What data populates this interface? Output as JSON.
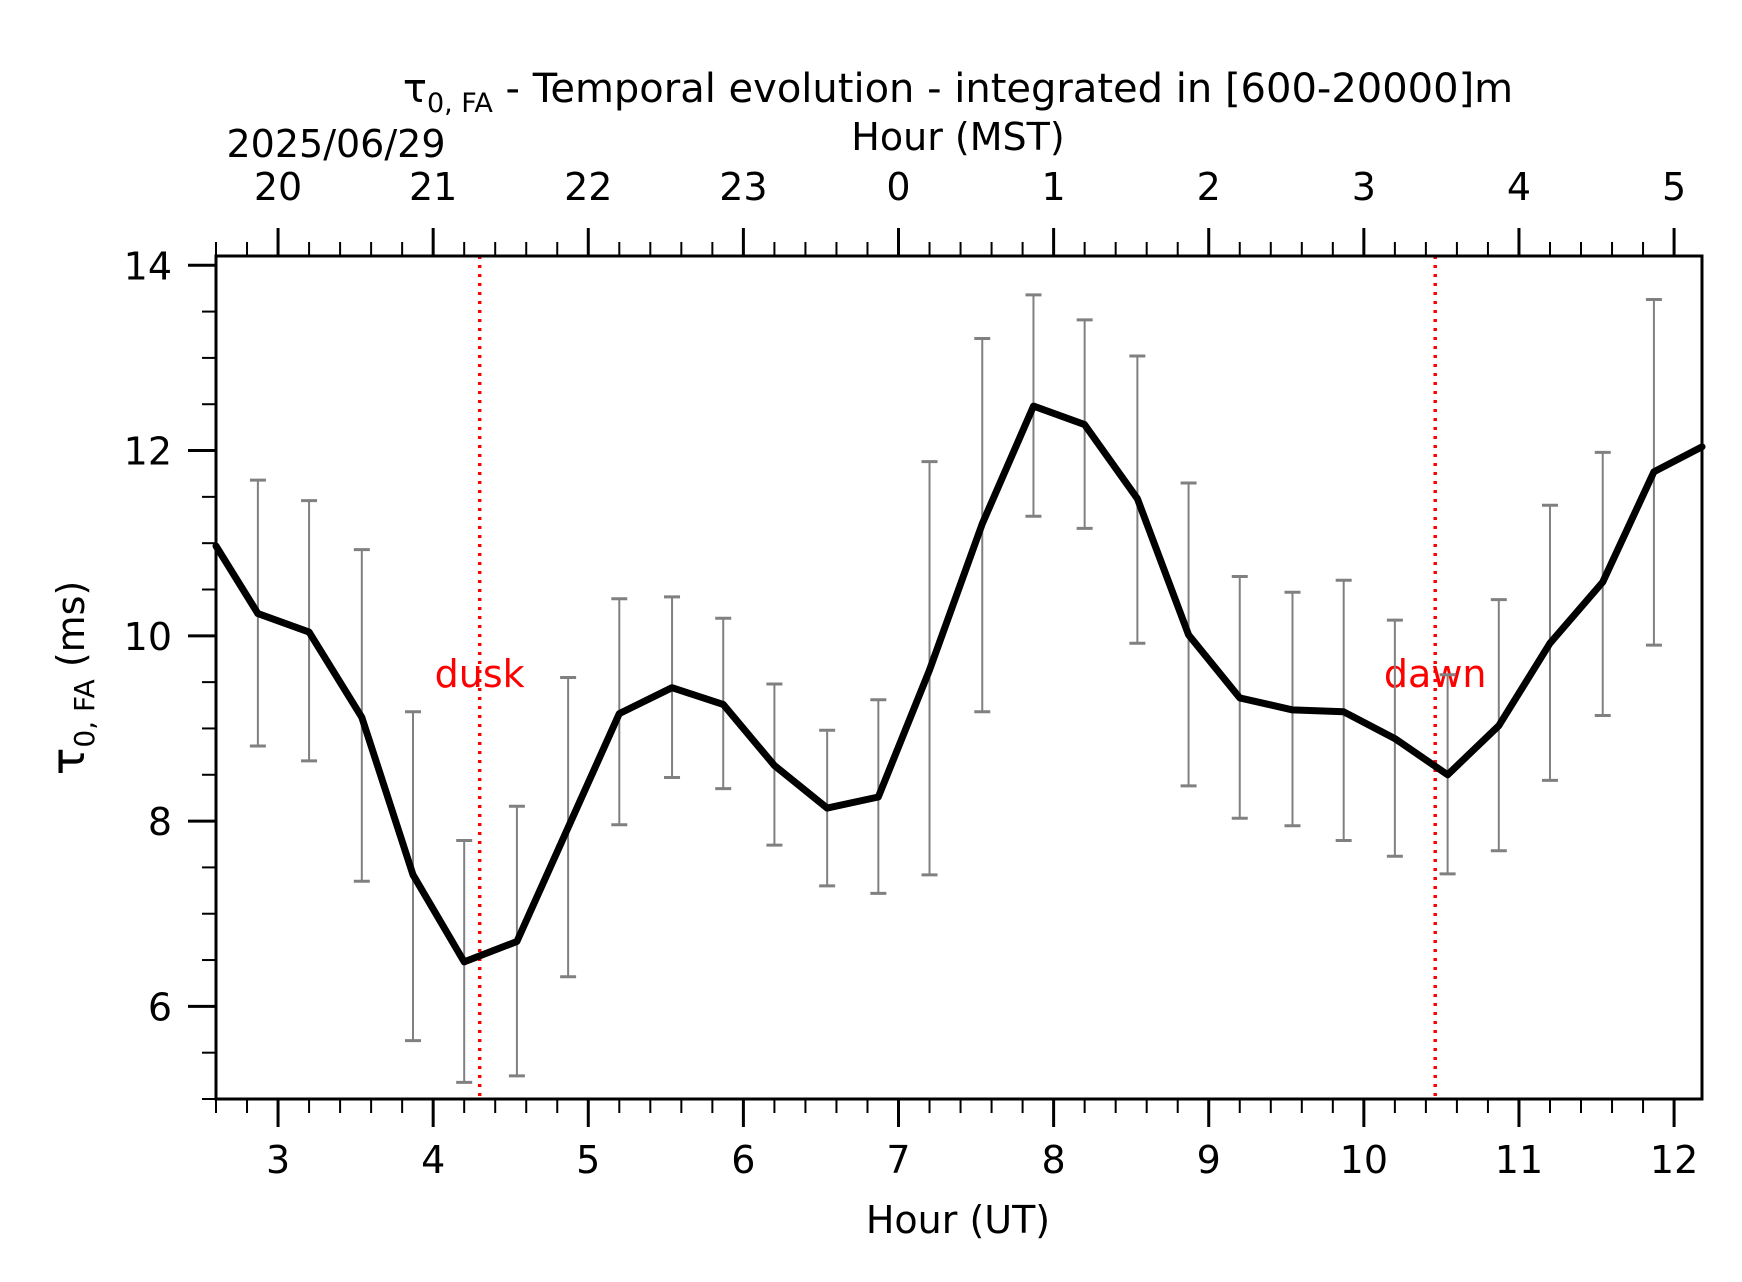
{
  "chart_data": {
    "type": "line",
    "title_symbol": "τ",
    "title_subscript": "0, FA",
    "title_rest": " - Temporal evolution - integrated in [600-20000]m",
    "date_label": "2025/06/29",
    "top_axis_label": "Hour (MST)",
    "xlabel": "Hour (UT)",
    "ylabel_symbol": "τ",
    "ylabel_subscript": "0, FA",
    "ylabel_rest": " (ms)",
    "xlim": [
      2.6,
      12.18
    ],
    "ylim": [
      5.0,
      14.1
    ],
    "x_ticks": [
      3,
      4,
      5,
      6,
      7,
      8,
      9,
      10,
      11,
      12
    ],
    "x_tick_labels": [
      "3",
      "4",
      "5",
      "6",
      "7",
      "8",
      "9",
      "10",
      "11",
      "12"
    ],
    "top_ticks_ut": [
      2.6,
      3.6,
      4.6,
      5.6,
      6.6,
      7.6,
      8.6,
      9.6,
      10.6,
      11.6
    ],
    "top_tick_labels": [
      "20",
      "21",
      "22",
      "23",
      "0",
      "1",
      "2",
      "3",
      "4",
      "5"
    ],
    "y_ticks": [
      6,
      8,
      10,
      12,
      14
    ],
    "y_tick_labels": [
      "6",
      "8",
      "10",
      "12",
      "14"
    ],
    "colors": {
      "line": "#000000",
      "errorbar": "#808080",
      "marker_line": "#ff0000"
    },
    "series": [
      {
        "x": [
          2.6,
          2.87,
          3.2,
          3.54,
          3.87,
          4.2,
          4.54,
          4.87,
          5.2,
          5.54,
          5.87,
          6.2,
          6.54,
          6.87,
          7.2,
          7.54,
          7.87,
          8.2,
          8.54,
          8.87,
          9.2,
          9.54,
          9.87,
          10.2,
          10.54,
          10.87,
          11.2,
          11.54,
          11.87,
          12.18
        ],
        "y": [
          10.97,
          10.24,
          10.04,
          9.12,
          7.42,
          6.48,
          6.7,
          7.93,
          9.16,
          9.44,
          9.26,
          8.6,
          8.14,
          8.26,
          9.63,
          11.21,
          12.48,
          12.28,
          11.48,
          10.01,
          9.33,
          9.2,
          9.18,
          8.89,
          8.5,
          9.03,
          9.92,
          10.58,
          11.77,
          12.04
        ],
        "err_low": [
          null,
          8.81,
          8.65,
          7.35,
          5.63,
          5.18,
          5.25,
          6.32,
          7.96,
          8.47,
          8.35,
          7.74,
          7.3,
          7.22,
          7.42,
          9.18,
          11.29,
          11.16,
          9.92,
          8.38,
          8.03,
          7.95,
          7.79,
          7.62,
          7.43,
          7.68,
          8.44,
          9.14,
          9.9,
          null
        ],
        "err_high": [
          null,
          11.68,
          11.46,
          10.93,
          9.18,
          7.79,
          8.16,
          9.55,
          10.4,
          10.42,
          10.19,
          9.48,
          8.98,
          9.31,
          11.88,
          13.21,
          13.68,
          13.41,
          13.02,
          11.65,
          10.64,
          10.47,
          10.6,
          10.17,
          9.58,
          10.39,
          11.41,
          11.98,
          13.63,
          null
        ]
      }
    ],
    "vertical_markers": [
      {
        "x": 4.3,
        "label": "dusk"
      },
      {
        "x": 10.46,
        "label": "dawn"
      }
    ]
  }
}
